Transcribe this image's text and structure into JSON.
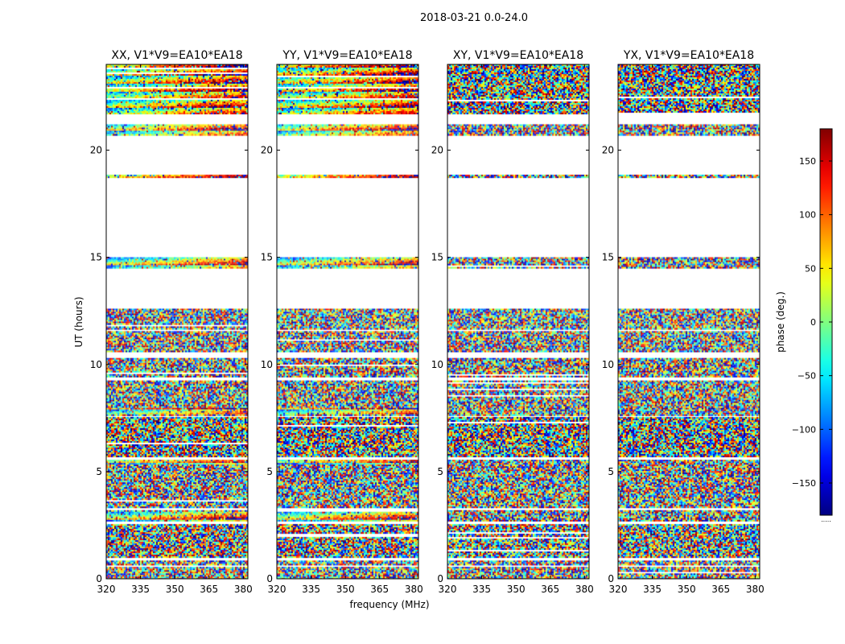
{
  "chart_data": {
    "type": "heatmap",
    "suptitle": "2018-03-21 0.0-24.0",
    "xlabel": "frequency (MHz)",
    "ylabel": "UT (hours)",
    "xlim": [
      320,
      382
    ],
    "ylim": [
      0,
      24
    ],
    "xticks": [
      320,
      335,
      350,
      365,
      380
    ],
    "yticks": [
      0,
      5,
      10,
      15,
      20
    ],
    "panels": [
      {
        "title": "XX, V1*V9=EA10*EA18",
        "kind": "parallel"
      },
      {
        "title": "YY, V1*V9=EA10*EA18",
        "kind": "parallel"
      },
      {
        "title": "XY, V1*V9=EA10*EA18",
        "kind": "cross"
      },
      {
        "title": "YX, V1*V9=EA10*EA18",
        "kind": "cross"
      }
    ],
    "data_blocks_ut": [
      [
        0.0,
        0.55
      ],
      [
        0.65,
        0.85
      ],
      [
        1.0,
        2.55
      ],
      [
        2.7,
        3.2
      ],
      [
        3.35,
        5.55
      ],
      [
        5.7,
        7.55
      ],
      [
        7.65,
        9.25
      ],
      [
        9.4,
        10.3
      ],
      [
        10.6,
        11.55
      ],
      [
        11.65,
        12.6
      ],
      [
        14.5,
        15.0
      ],
      [
        18.7,
        18.85
      ],
      [
        20.7,
        21.2
      ],
      [
        21.7,
        24.0
      ]
    ],
    "colorbar": {
      "label": "phase (deg.)",
      "range": [
        -180,
        180
      ],
      "ticks": [
        -150,
        -100,
        -50,
        0,
        50,
        100,
        150
      ],
      "tick_labels": [
        "−150",
        "−100",
        "−50",
        "0",
        "50",
        "100",
        "150"
      ],
      "colormap": "jet",
      "under_label": "....."
    }
  }
}
